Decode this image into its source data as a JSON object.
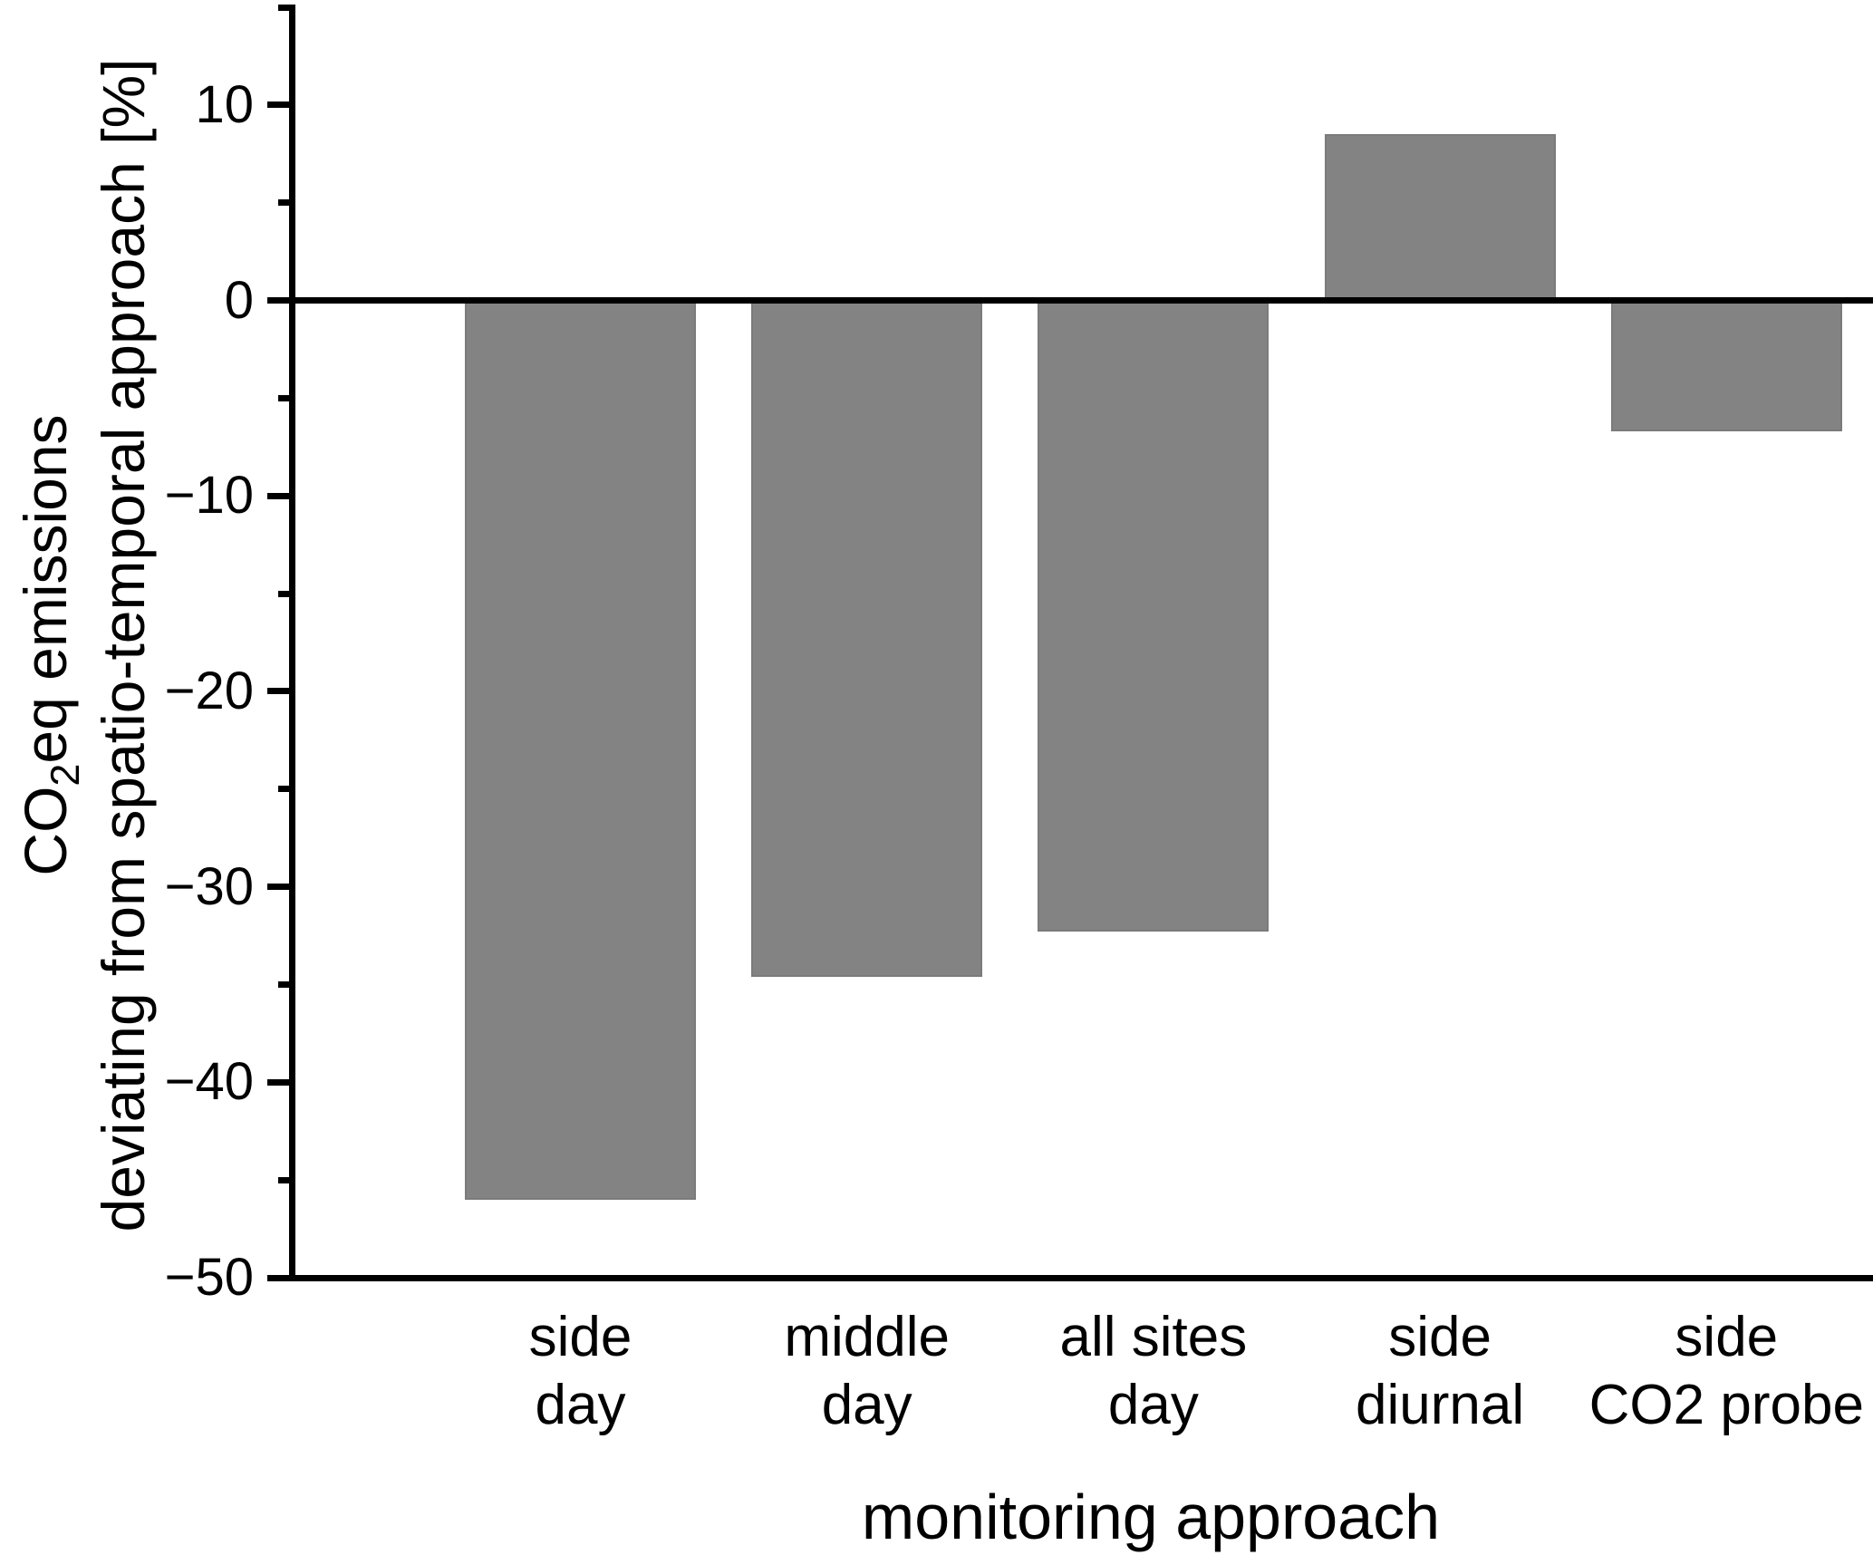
{
  "chart_data": {
    "type": "bar",
    "title": "",
    "xlabel": "monitoring approach",
    "ylabel": {
      "line1_pre": "CO",
      "line1_sub": "2",
      "line1_post": "eq emissions",
      "line2": "deviating from spatio-temporal approach [%]"
    },
    "categories": [
      {
        "line1": "side",
        "line2": "day"
      },
      {
        "line1": "middle",
        "line2": "day"
      },
      {
        "line1": "all sites",
        "line2": "day"
      },
      {
        "line1": "side",
        "line2": "diurnal"
      },
      {
        "line1": "side",
        "line2": "CO2 probe"
      }
    ],
    "values": [
      -46.0,
      -34.6,
      -32.3,
      8.5,
      -6.7
    ],
    "ylim": [
      -50,
      15
    ],
    "yticks_major": [
      {
        "value": 10,
        "label": "10"
      },
      {
        "value": 0,
        "label": "0"
      },
      {
        "value": -10,
        "label": "−10"
      },
      {
        "value": -20,
        "label": "−20"
      },
      {
        "value": -30,
        "label": "−30"
      },
      {
        "value": -40,
        "label": "−40"
      },
      {
        "value": -50,
        "label": "−50"
      }
    ],
    "yticks_minor": [
      15,
      5,
      -5,
      -15,
      -25,
      -35,
      -45
    ],
    "grid": false,
    "legend": null,
    "bar_color": "#838383",
    "axis_color": "#000000",
    "background_color": "#ffffff"
  }
}
